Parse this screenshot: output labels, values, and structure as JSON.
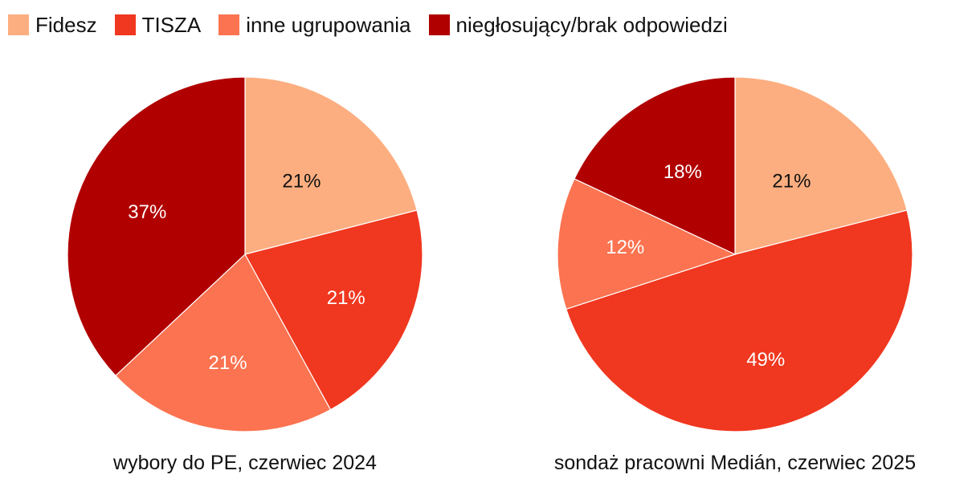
{
  "legend": [
    {
      "label": "Fidesz",
      "color": "#fcae80"
    },
    {
      "label": "TISZA",
      "color": "#f0371f"
    },
    {
      "label": "inne ugrupowania",
      "color": "#fb7350"
    },
    {
      "label": "niegłosujący/brak odpowiedzi",
      "color": "#b10000"
    }
  ],
  "chart_data": [
    {
      "type": "pie",
      "caption": "wybory do PE, czerwiec 2024",
      "slices": [
        {
          "category": "Fidesz",
          "value": 21,
          "label": "21%",
          "color": "#fcae80",
          "label_color": "#111111"
        },
        {
          "category": "TISZA",
          "value": 21,
          "label": "21%",
          "color": "#f0371f",
          "label_color": "#ffffff"
        },
        {
          "category": "inne ugrupowania",
          "value": 21,
          "label": "21%",
          "color": "#fb7350",
          "label_color": "#ffffff"
        },
        {
          "category": "niegłosujący/brak odpowiedzi",
          "value": 37,
          "label": "37%",
          "color": "#b10000",
          "label_color": "#ffffff"
        }
      ]
    },
    {
      "type": "pie",
      "caption": "sondaż pracowni Medián, czerwiec 2025",
      "slices": [
        {
          "category": "Fidesz",
          "value": 21,
          "label": "21%",
          "color": "#fcae80",
          "label_color": "#111111"
        },
        {
          "category": "TISZA",
          "value": 49,
          "label": "49%",
          "color": "#f0371f",
          "label_color": "#ffffff"
        },
        {
          "category": "inne ugrupowania",
          "value": 12,
          "label": "12%",
          "color": "#fb7350",
          "label_color": "#ffffff"
        },
        {
          "category": "niegłosujący/brak odpowiedzi",
          "value": 18,
          "label": "18%",
          "color": "#b10000",
          "label_color": "#ffffff"
        }
      ]
    }
  ]
}
